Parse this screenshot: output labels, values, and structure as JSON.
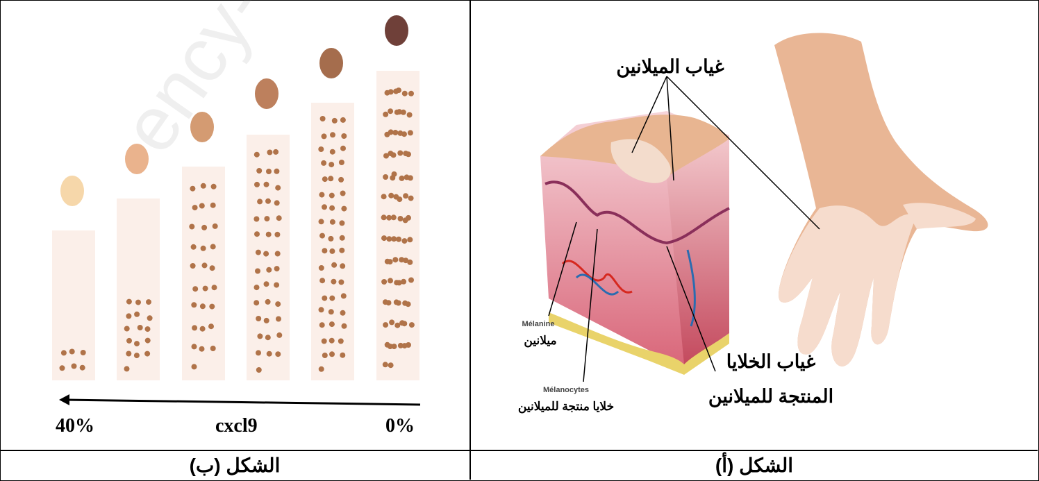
{
  "figure_b": {
    "caption": "الشكل (ب)",
    "axis_label": "cxcl9",
    "left_value": "40%",
    "right_value": "0%",
    "colors": {
      "bar": "#fbefe9",
      "dot": "#b07349",
      "swatches": [
        "#f6d7aa",
        "#eab38d",
        "#d49b72",
        "#bd805d",
        "#a56d4d",
        "#6f4039"
      ]
    }
  },
  "figure_a": {
    "caption": "الشكل (أ)",
    "labels": {
      "no_melanin": "غياب الميلانين",
      "no_cells_line1": "غياب الخلايا",
      "no_cells_line2": "المنتجة للميلانين",
      "melanine_fr": "Mélanine",
      "melanine_ar": "ميلانين",
      "melanocytes_fr": "Mélanocytes",
      "melanocytes_ar": "خلايا منتجة للميلانين"
    }
  },
  "watermark": "ency-edu"
}
